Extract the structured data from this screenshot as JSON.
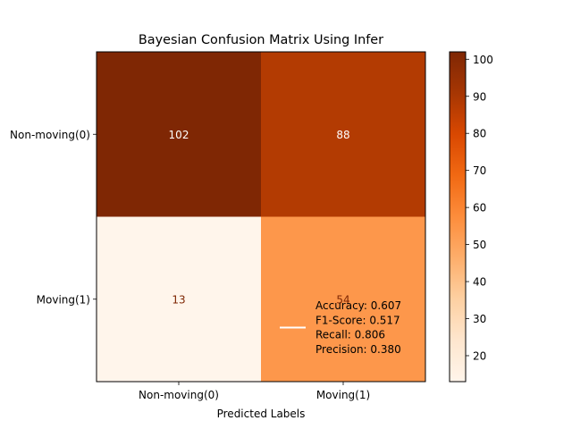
{
  "chart_data": {
    "type": "heatmap",
    "title": "Bayesian Confusion Matrix Using Infer",
    "xlabel": "Predicted Labels",
    "ylabel": "",
    "x_categories": [
      "Non-moving(0)",
      "Moving(1)"
    ],
    "y_categories": [
      "Non-moving(0)",
      "Moving(1)"
    ],
    "values": [
      [
        102,
        88
      ],
      [
        13,
        54
      ]
    ],
    "value_labels": [
      [
        "102",
        "88"
      ],
      [
        "13",
        "54"
      ]
    ],
    "colormap": "Oranges",
    "color_range": [
      13,
      102
    ],
    "colorbar_ticks": [
      20,
      30,
      40,
      50,
      60,
      70,
      80,
      90,
      100
    ],
    "colorbar_tick_labels": [
      "20",
      "30",
      "40",
      "50",
      "60",
      "70",
      "80",
      "90",
      "100"
    ],
    "text_colors": {
      "dark_cell": "#ffffff",
      "light_cell": "#7f2704"
    },
    "legend": {
      "placement": "lower-right",
      "line_color": "#ffffff",
      "lines": [
        "Accuracy: 0.607",
        "F1-Score: 0.517",
        "Recall: 0.806",
        "Precision: 0.380"
      ]
    }
  }
}
